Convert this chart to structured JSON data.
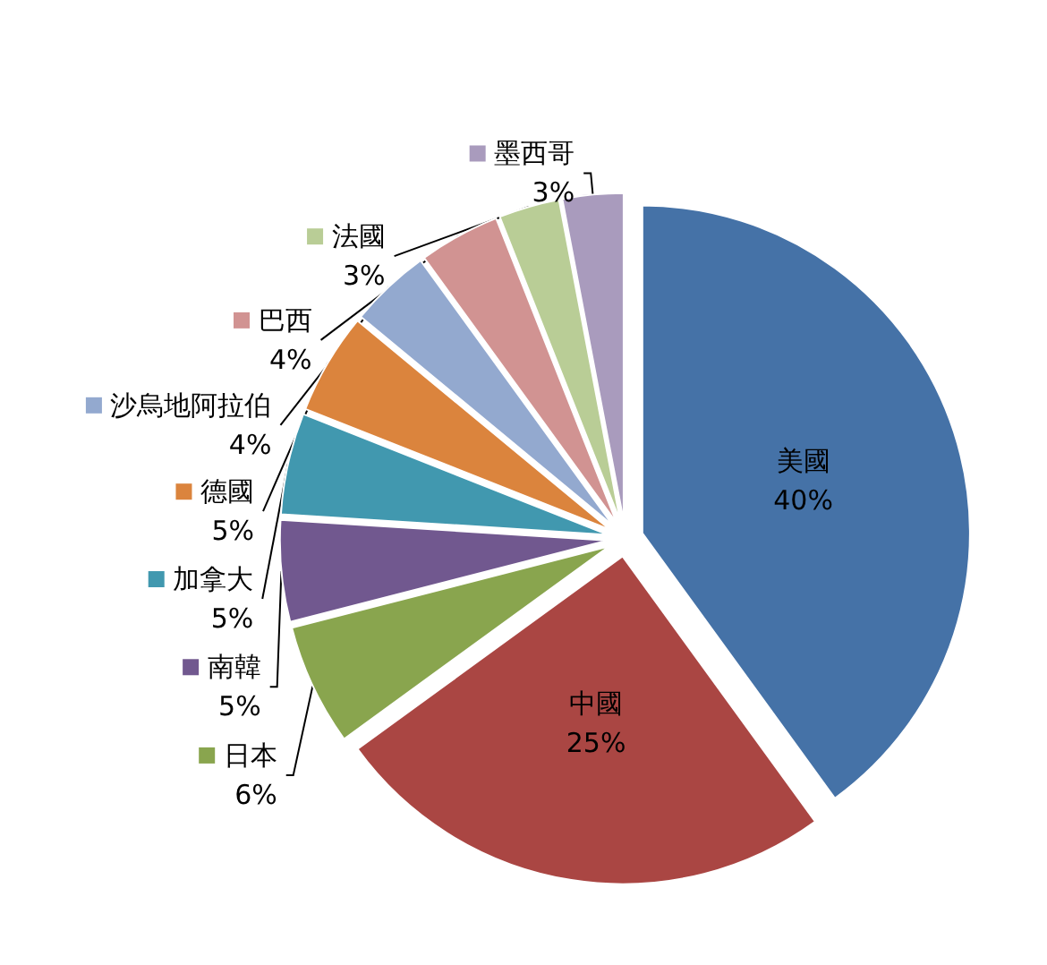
{
  "chart_data": {
    "type": "pie",
    "categories": [
      "美國",
      "中國",
      "日本",
      "南韓",
      "加拿大",
      "德國",
      "沙烏地阿拉伯",
      "巴西",
      "法國",
      "墨西哥"
    ],
    "values": [
      40,
      25,
      6,
      5,
      5,
      5,
      4,
      4,
      3,
      3
    ],
    "value_labels": [
      "40%",
      "25%",
      "6%",
      "5%",
      "5%",
      "5%",
      "4%",
      "4%",
      "3%",
      "3%"
    ],
    "colors": [
      "#4572a7",
      "#aa4643",
      "#89a54e",
      "#71588f",
      "#4198af",
      "#db843d",
      "#93a9cf",
      "#d19392",
      "#b9cd96",
      "#a99bbd"
    ],
    "legend": "left"
  }
}
